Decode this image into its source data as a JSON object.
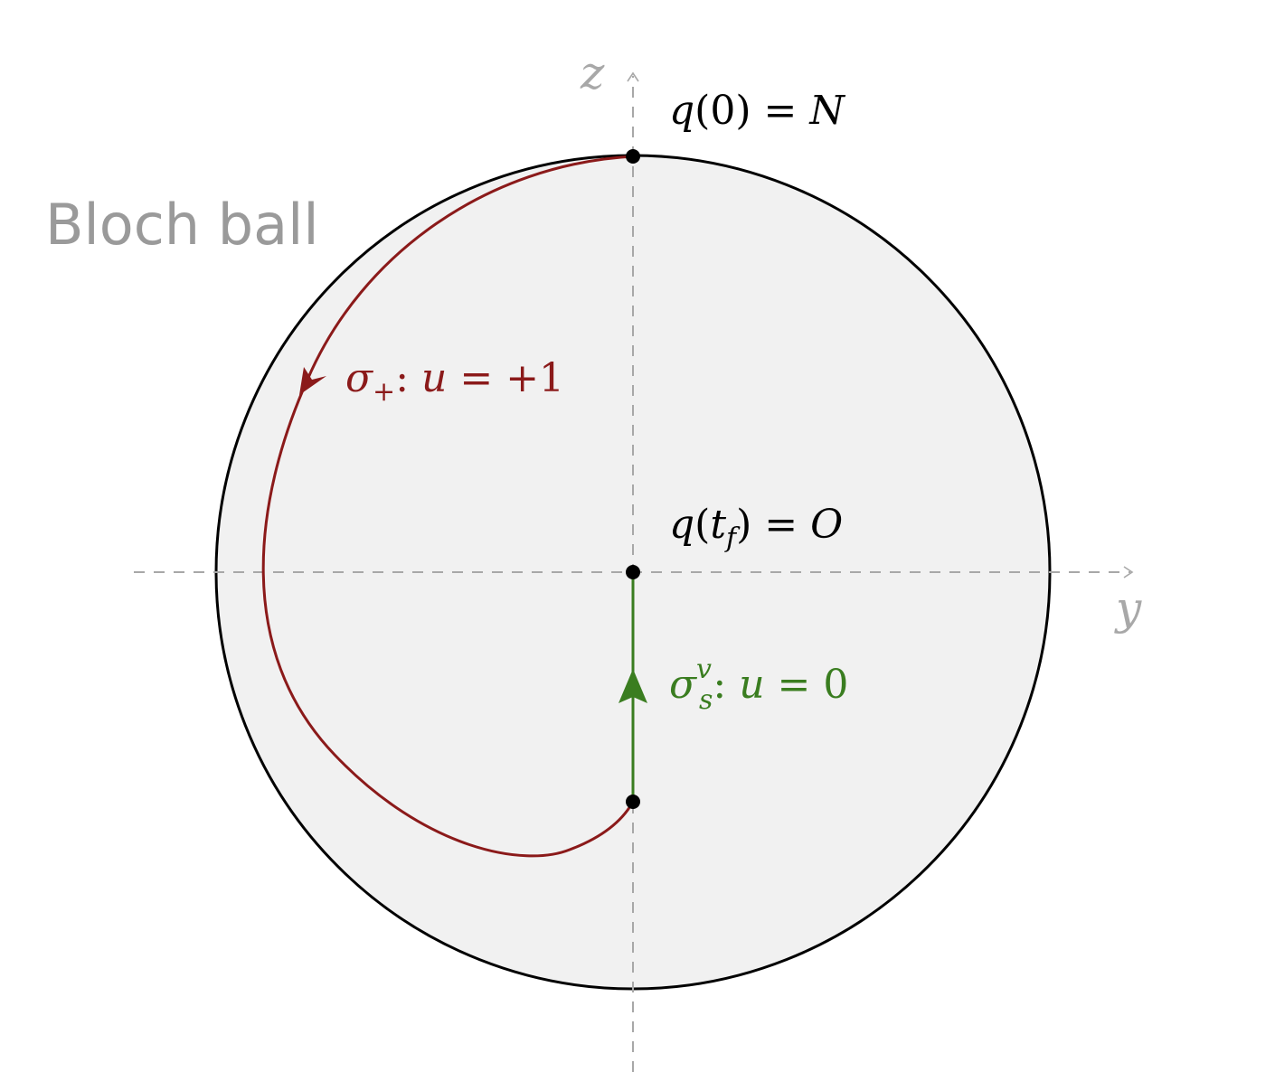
{
  "ball_label": "Bloch ball",
  "axes": {
    "z": "z",
    "y": "y"
  },
  "points": {
    "north": {
      "lhs": "q",
      "arg": "0",
      "rhs": "N"
    },
    "origin": {
      "lhs": "q",
      "arg_main": "t",
      "arg_sub": "f",
      "rhs": "O"
    }
  },
  "arcs": {
    "plus": {
      "sym": "σ",
      "sub": "+",
      "control": "u",
      "value": "+1",
      "color": "#8b1a1a"
    },
    "singular": {
      "sym": "σ",
      "sub": "s",
      "sup": "v",
      "control": "u",
      "value": "0",
      "color": "#3a7d20"
    }
  },
  "colors": {
    "ball_fill": "#f1f1f1",
    "axes": "#a8a8a8",
    "outline": "#000000"
  }
}
